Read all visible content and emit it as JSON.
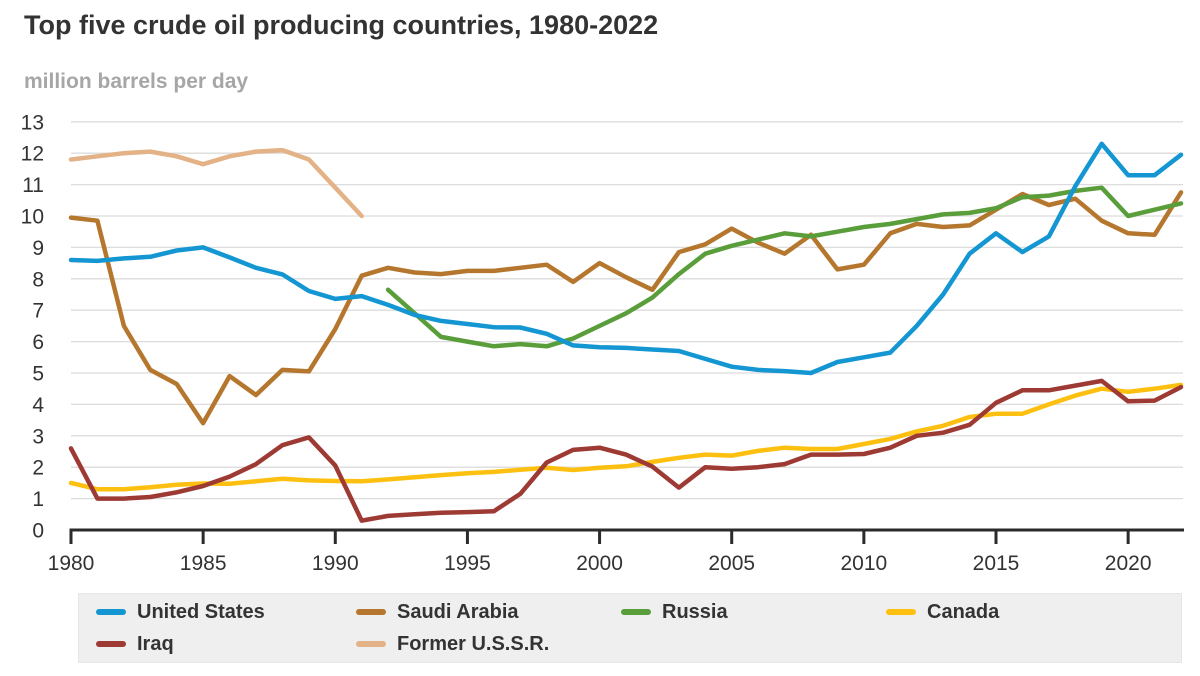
{
  "title": "Top five crude oil producing countries, 1980-2022",
  "subtitle": "million barrels per day",
  "colors": {
    "title_text": "#333333",
    "subtitle_text": "#a6a6a6",
    "axis_line": "#2b2b2b",
    "gridline": "#dcdcdc",
    "tick_label": "#333333",
    "legend_background": "#efefef",
    "legend_text": "#333333"
  },
  "chart_data": {
    "type": "line",
    "x_start_year": 1980,
    "x_end_year": 2022,
    "xlim": [
      1980,
      2022
    ],
    "ylim": [
      0,
      13
    ],
    "x_tick_labels": [
      "1980",
      "1985",
      "1990",
      "1995",
      "2000",
      "2005",
      "2010",
      "2015",
      "2020"
    ],
    "x_tick_years": [
      1980,
      1985,
      1990,
      1995,
      2000,
      2005,
      2010,
      2015,
      2020
    ],
    "y_tick_labels": [
      "0",
      "1",
      "2",
      "3",
      "4",
      "5",
      "6",
      "7",
      "8",
      "9",
      "10",
      "11",
      "12",
      "13"
    ],
    "y_tick_values": [
      0,
      1,
      2,
      3,
      4,
      5,
      6,
      7,
      8,
      9,
      10,
      11,
      12,
      13
    ],
    "grid": "horizontal-only",
    "legend_position": "bottom",
    "series": [
      {
        "name": "United States",
        "color": "#1496d3",
        "values": [
          8.6,
          8.57,
          8.65,
          8.7,
          8.9,
          9.0,
          8.68,
          8.35,
          8.14,
          7.61,
          7.36,
          7.45,
          7.17,
          6.85,
          6.66,
          6.56,
          6.46,
          6.45,
          6.25,
          5.88,
          5.82,
          5.8,
          5.75,
          5.7,
          5.45,
          5.2,
          5.1,
          5.06,
          5.0,
          5.35,
          5.5,
          5.65,
          6.5,
          7.5,
          8.8,
          9.45,
          8.85,
          9.35,
          10.95,
          12.3,
          11.3,
          11.3,
          11.95
        ]
      },
      {
        "name": "Saudi Arabia",
        "color": "#b5762d",
        "values": [
          9.95,
          9.85,
          6.5,
          5.1,
          4.65,
          3.4,
          4.9,
          4.3,
          5.1,
          5.05,
          6.4,
          8.1,
          8.35,
          8.2,
          8.15,
          8.25,
          8.25,
          8.35,
          8.45,
          7.9,
          8.5,
          8.05,
          7.65,
          8.85,
          9.1,
          9.6,
          9.15,
          8.8,
          9.4,
          8.3,
          8.45,
          9.45,
          9.75,
          9.65,
          9.7,
          10.2,
          10.7,
          10.35,
          10.55,
          9.85,
          9.45,
          9.4,
          10.75
        ]
      },
      {
        "name": "Russia",
        "color": "#5a9e3c",
        "values": [
          null,
          null,
          null,
          null,
          null,
          null,
          null,
          null,
          null,
          null,
          null,
          null,
          7.65,
          6.9,
          6.15,
          6.0,
          5.85,
          5.92,
          5.85,
          6.1,
          6.5,
          6.9,
          7.4,
          8.15,
          8.8,
          9.05,
          9.25,
          9.45,
          9.35,
          9.5,
          9.65,
          9.75,
          9.9,
          10.05,
          10.1,
          10.25,
          10.6,
          10.65,
          10.8,
          10.9,
          10.0,
          10.2,
          10.4
        ]
      },
      {
        "name": "Canada",
        "color": "#fdc010",
        "values": [
          1.5,
          1.3,
          1.3,
          1.36,
          1.44,
          1.48,
          1.47,
          1.55,
          1.63,
          1.58,
          1.56,
          1.55,
          1.61,
          1.68,
          1.75,
          1.81,
          1.85,
          1.92,
          1.98,
          1.91,
          1.98,
          2.03,
          2.17,
          2.3,
          2.4,
          2.37,
          2.52,
          2.62,
          2.58,
          2.58,
          2.74,
          2.9,
          3.14,
          3.32,
          3.6,
          3.7,
          3.7,
          4.0,
          4.28,
          4.5,
          4.4,
          4.5,
          4.62
        ]
      },
      {
        "name": "Iraq",
        "color": "#9e3a34",
        "values": [
          2.6,
          1.0,
          1.0,
          1.05,
          1.2,
          1.4,
          1.7,
          2.1,
          2.7,
          2.95,
          2.05,
          0.3,
          0.45,
          0.5,
          0.55,
          0.57,
          0.6,
          1.15,
          2.15,
          2.55,
          2.62,
          2.4,
          2.02,
          1.35,
          2.0,
          1.95,
          2.0,
          2.1,
          2.4,
          2.4,
          2.42,
          2.62,
          3.0,
          3.1,
          3.35,
          4.05,
          4.45,
          4.45,
          4.6,
          4.75,
          4.1,
          4.12,
          4.55
        ]
      },
      {
        "name": "Former U.S.S.R.",
        "color": "#e3b287",
        "values": [
          11.8,
          11.9,
          12.0,
          12.05,
          11.9,
          11.65,
          11.9,
          12.05,
          12.1,
          11.8,
          10.9,
          10.0,
          null,
          null,
          null,
          null,
          null,
          null,
          null,
          null,
          null,
          null,
          null,
          null,
          null,
          null,
          null,
          null,
          null,
          null,
          null,
          null,
          null,
          null,
          null,
          null,
          null,
          null,
          null,
          null,
          null,
          null,
          null
        ]
      }
    ]
  }
}
